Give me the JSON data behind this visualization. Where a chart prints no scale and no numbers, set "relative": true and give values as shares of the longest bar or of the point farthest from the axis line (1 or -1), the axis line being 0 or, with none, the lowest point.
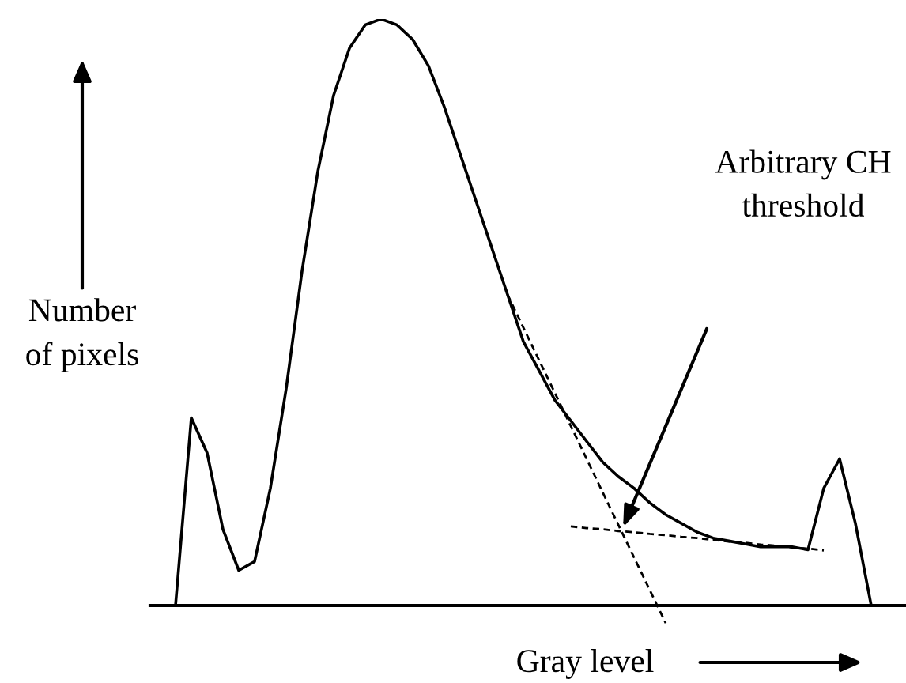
{
  "chart_data": {
    "type": "line",
    "relative": true,
    "xlabel": "Gray level",
    "ylabel": "Number\nof pixels",
    "categories": [
      null,
      null,
      null,
      null,
      null,
      null,
      null,
      null,
      null,
      null,
      null,
      null,
      null,
      null,
      null,
      null,
      null,
      null,
      null,
      null,
      null,
      null,
      null,
      null,
      null,
      null,
      null,
      null,
      null,
      null,
      null,
      null,
      null,
      null,
      null,
      null,
      null,
      null,
      null,
      null,
      null,
      null,
      null,
      null,
      null
    ],
    "series": [
      {
        "color": "#000000",
        "line_style": "solid",
        "values": [
          0,
          0.32,
          0.26,
          0.13,
          0.06,
          0.075,
          0.2,
          0.37,
          0.57,
          0.74,
          0.87,
          0.95,
          0.99,
          1.0,
          0.99,
          0.965,
          0.92,
          0.85,
          0.77,
          0.69,
          0.61,
          0.53,
          0.45,
          0.4,
          0.35,
          0.315,
          0.28,
          0.245,
          0.22,
          0.2,
          0.175,
          0.155,
          0.14,
          0.125,
          0.115,
          0.11,
          0.105,
          0.1,
          0.1,
          0.1,
          0.095,
          0.2,
          0.25,
          0.14,
          0
        ]
      },
      {
        "type": "line",
        "color": "#000000",
        "line_style": "dashed",
        "values": [
          null,
          null,
          null,
          null,
          null,
          null,
          null,
          null,
          null,
          null,
          null,
          null,
          null,
          null,
          null,
          null,
          null,
          null,
          null,
          null,
          null,
          0.53,
          0.474,
          0.418,
          0.362,
          0.306,
          0.25,
          0.194,
          0.138,
          0.082,
          0.026,
          -0.03,
          null,
          null,
          null,
          null,
          null,
          null,
          null,
          null,
          null,
          null,
          null,
          null,
          null
        ]
      },
      {
        "type": "line",
        "color": "#000000",
        "line_style": "dashed",
        "values": [
          null,
          null,
          null,
          null,
          null,
          null,
          null,
          null,
          null,
          null,
          null,
          null,
          null,
          null,
          null,
          null,
          null,
          null,
          null,
          null,
          null,
          null,
          null,
          null,
          null,
          0.135,
          0.132,
          0.13,
          0.127,
          0.125,
          0.122,
          0.12,
          0.117,
          0.115,
          0.112,
          0.109,
          0.107,
          0.104,
          0.102,
          0.099,
          0.097,
          0.094,
          null,
          null,
          null
        ]
      }
    ],
    "annotations": [
      "Arbitrary CH\nthreshold"
    ],
    "grid": false,
    "legend": false,
    "marker": "none"
  }
}
